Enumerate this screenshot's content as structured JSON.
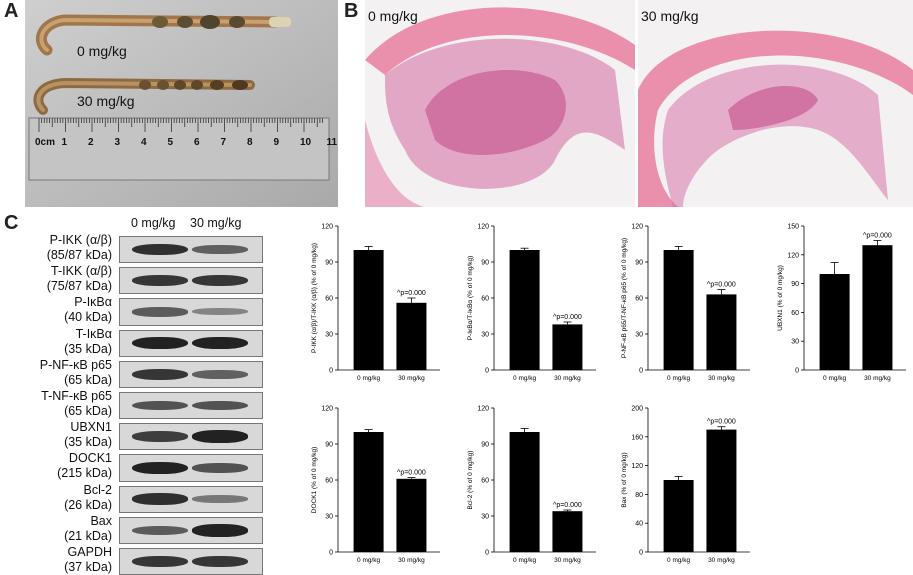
{
  "panels": {
    "a": "A",
    "b": "B",
    "c": "C"
  },
  "panel_a": {
    "label_0": "0 mg/kg",
    "label_30": "30 mg/kg",
    "ruler_zero": "0cm",
    "ruler_numbers": [
      "1",
      "2",
      "3",
      "4",
      "5",
      "6",
      "7",
      "8",
      "9",
      "10",
      "11"
    ]
  },
  "panel_b": {
    "left_label": "0 mg/kg",
    "right_label": "30 mg/kg"
  },
  "blot": {
    "header_0": "0 mg/kg",
    "header_30": "30 mg/kg",
    "proteins": [
      {
        "name": "P-IKK (α/β)",
        "kda": "(85/87 kDa)",
        "i0": 0.85,
        "i30": 0.5
      },
      {
        "name": "T-IKK (α/β)",
        "kda": "(75/87 kDa)",
        "i0": 0.8,
        "i30": 0.8
      },
      {
        "name": "P-IκBα",
        "kda": "(40 kDa)",
        "i0": 0.55,
        "i30": 0.25
      },
      {
        "name": "T-IκBα",
        "kda": "(35 kDa)",
        "i0": 0.95,
        "i30": 0.95
      },
      {
        "name": "P-NF-κB p65",
        "kda": "(65 kDa)",
        "i0": 0.8,
        "i30": 0.5
      },
      {
        "name": "T-NF-κB p65",
        "kda": "(65 kDa)",
        "i0": 0.6,
        "i30": 0.6
      },
      {
        "name": "UBXN1",
        "kda": "(35 kDa)",
        "i0": 0.75,
        "i30": 0.95
      },
      {
        "name": "DOCK1",
        "kda": "(215 kDa)",
        "i0": 0.95,
        "i30": 0.6
      },
      {
        "name": "Bcl-2",
        "kda": "(26 kDa)",
        "i0": 0.85,
        "i30": 0.35
      },
      {
        "name": "Bax",
        "kda": "(21 kDa)",
        "i0": 0.55,
        "i30": 0.95
      },
      {
        "name": "GAPDH",
        "kda": "(37 kDa)",
        "i0": 0.8,
        "i30": 0.8
      }
    ]
  },
  "colors": {
    "bar": "#000000",
    "tissue": "#d86a9a",
    "muscle": "#e0577f"
  },
  "chart_data": [
    {
      "type": "bar",
      "categories": [
        "0 mg/kg",
        "30 mg/kg"
      ],
      "values": [
        100,
        56
      ],
      "errors": [
        3,
        4
      ],
      "ylabel": "P-IKK (α/β)/T-IKK (α/β) (% of 0 mg/kg)",
      "ylim": [
        0,
        120
      ],
      "yticks": [
        "0",
        "30",
        "60",
        "90",
        "120"
      ],
      "annotation": "^p=0.000"
    },
    {
      "type": "bar",
      "categories": [
        "0 mg/kg",
        "30 mg/kg"
      ],
      "values": [
        100,
        38
      ],
      "errors": [
        1.5,
        2
      ],
      "ylabel": "P-IκBα/T-IκBα (% of 0 mg/kg)",
      "ylim": [
        0,
        120
      ],
      "yticks": [
        "0",
        "30",
        "60",
        "90",
        "120"
      ],
      "annotation": "^p=0.000"
    },
    {
      "type": "bar",
      "categories": [
        "0 mg/kg",
        "30 mg/kg"
      ],
      "values": [
        100,
        63
      ],
      "errors": [
        3,
        4
      ],
      "ylabel": "P-NF-κB p65/T-NF-κB p65 (% of 0 mg/kg)",
      "ylim": [
        0,
        120
      ],
      "yticks": [
        "0",
        "30",
        "60",
        "90",
        "120"
      ],
      "annotation": "^p=0.000"
    },
    {
      "type": "bar",
      "categories": [
        "0 mg/kg",
        "30 mg/kg"
      ],
      "values": [
        100,
        130
      ],
      "errors": [
        12,
        5
      ],
      "ylabel": "UBXN1 (% of 0 mg/kg)",
      "ylim": [
        0,
        150
      ],
      "yticks": [
        "0",
        "30",
        "60",
        "90",
        "120",
        "150"
      ],
      "annotation": "^p=0.000"
    },
    {
      "type": "bar",
      "categories": [
        "0 mg/kg",
        "30 mg/kg"
      ],
      "values": [
        100,
        61
      ],
      "errors": [
        2,
        1
      ],
      "ylabel": "DOCK1 (% of 0 mg/kg)",
      "ylim": [
        0,
        120
      ],
      "yticks": [
        "0",
        "30",
        "60",
        "90",
        "120"
      ],
      "annotation": "^p=0.000"
    },
    {
      "type": "bar",
      "categories": [
        "0 mg/kg",
        "30 mg/kg"
      ],
      "values": [
        100,
        34
      ],
      "errors": [
        3,
        1
      ],
      "ylabel": "Bcl-2 (% of 0 mg/kg)",
      "ylim": [
        0,
        120
      ],
      "yticks": [
        "0",
        "30",
        "60",
        "90",
        "120"
      ],
      "annotation": "^p=0.000"
    },
    {
      "type": "bar",
      "categories": [
        "0 mg/kg",
        "30 mg/kg"
      ],
      "values": [
        100,
        170
      ],
      "errors": [
        5,
        4
      ],
      "ylabel": "Bax (% of 0 mg/kg)",
      "ylim": [
        0,
        200
      ],
      "yticks": [
        "0",
        "40",
        "80",
        "120",
        "160",
        "200"
      ],
      "annotation": "^p=0.000"
    }
  ]
}
